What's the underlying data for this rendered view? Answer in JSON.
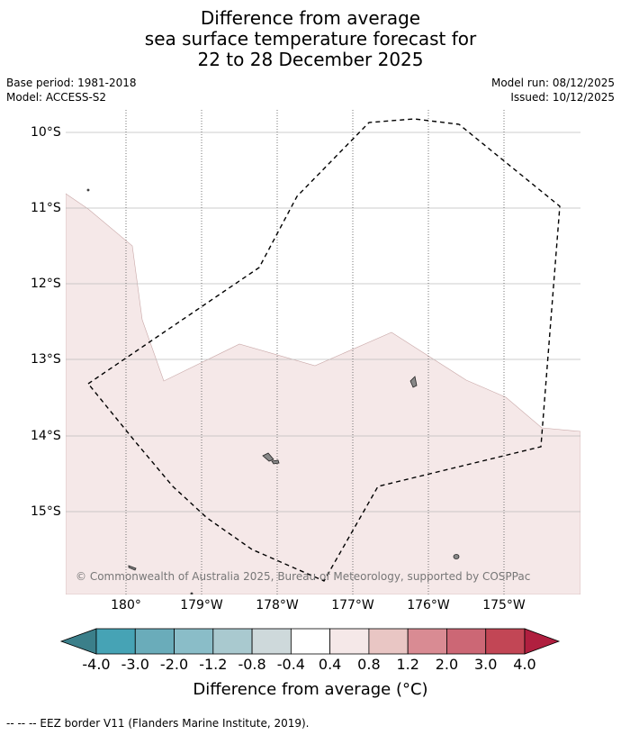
{
  "title": {
    "line1": "Difference from average",
    "line2": "sea surface temperature forecast for",
    "line3": "22 to 28 December 2025"
  },
  "meta": {
    "base_period": "Base period: 1981-2018",
    "model": "Model: ACCESS-S2",
    "model_run": "Model run: 08/12/2025",
    "issued": "Issued: 10/12/2025"
  },
  "map": {
    "lat_labels": [
      "10°S",
      "11°S",
      "12°S",
      "13°S",
      "14°S",
      "15°S"
    ],
    "lon_labels": [
      "180°",
      "179°W",
      "178°W",
      "177°W",
      "176°W",
      "175°W"
    ],
    "anomaly_fill_color": "#f5e8e8",
    "copyright": "© Commonwealth of Australia 2025, Bureau of Meteorology, supported by COSPPac"
  },
  "colorbar": {
    "ticks": [
      "-4.0",
      "-3.0",
      "-2.0",
      "-1.2",
      "-0.8",
      "-0.4",
      "0.4",
      "0.8",
      "1.2",
      "2.0",
      "3.0",
      "4.0"
    ],
    "colors": [
      "#3b7f8a",
      "#46a3b5",
      "#6aacba",
      "#8abdc8",
      "#a9c9cf",
      "#ced9db",
      "#ffffff",
      "#f5e8e8",
      "#e9c6c4",
      "#d98b93",
      "#cc6775",
      "#c24655",
      "#b01f3f"
    ],
    "title": "Difference from average (°C)"
  },
  "footer": "--  --  -- EEZ border V11 (Flanders Marine Institute, 2019)."
}
